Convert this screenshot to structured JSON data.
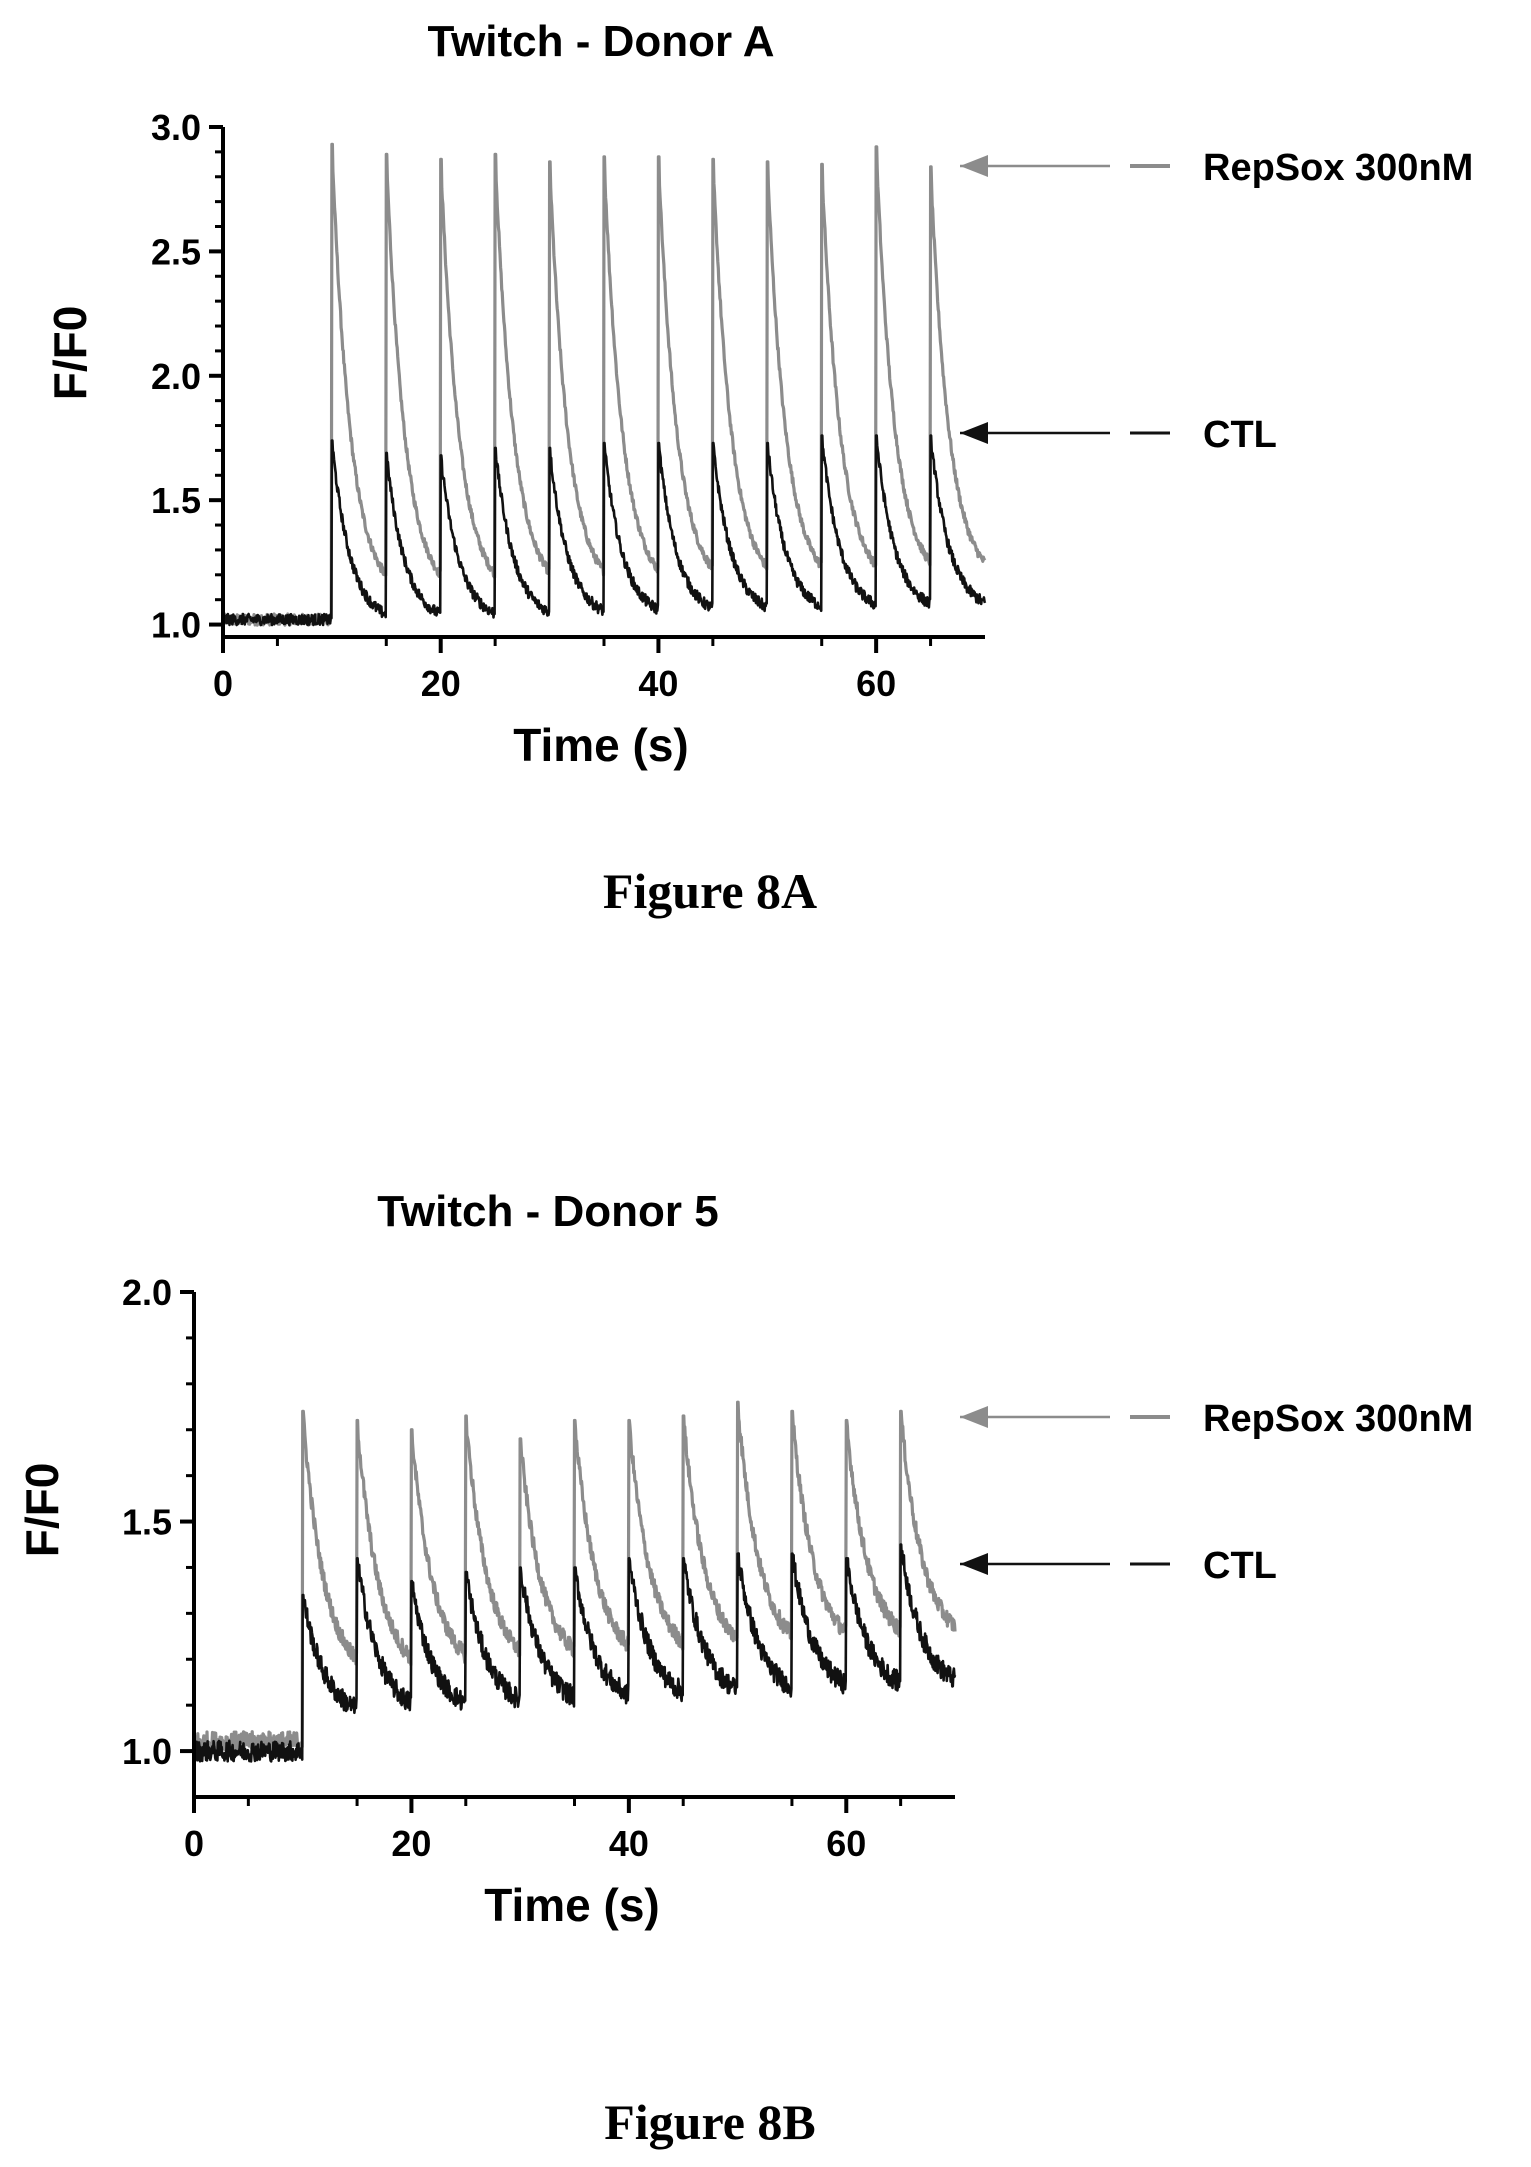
{
  "chart_data": [
    {
      "type": "line",
      "title": "Twitch - Donor A",
      "xlabel": "Time (s)",
      "ylabel": "F/F0",
      "xlim": [
        0,
        70
      ],
      "ylim": [
        0.95,
        3.0
      ],
      "x_ticks": [
        "0",
        "20",
        "40",
        "60"
      ],
      "y_ticks": [
        "1.0",
        "1.5",
        "2.0",
        "2.5",
        "3.0"
      ],
      "grid": false,
      "legend_placement": "right",
      "stim_start": 10,
      "stim_period": 5,
      "decay_tau": 1.7,
      "caption": "Figure 8A",
      "series": [
        {
          "name": "RepSox 300nM",
          "color": "#8c8c8c",
          "baseline": 1.02,
          "plateau_start": 1.15,
          "plateau_end": 1.21,
          "peaks": [
            {
              "x": 10,
              "y": 2.93
            },
            {
              "x": 15,
              "y": 2.89
            },
            {
              "x": 20,
              "y": 2.87
            },
            {
              "x": 25,
              "y": 2.89
            },
            {
              "x": 30,
              "y": 2.86
            },
            {
              "x": 35,
              "y": 2.88
            },
            {
              "x": 40,
              "y": 2.88
            },
            {
              "x": 45,
              "y": 2.87
            },
            {
              "x": 50,
              "y": 2.86
            },
            {
              "x": 55,
              "y": 2.85
            },
            {
              "x": 60,
              "y": 2.92
            },
            {
              "x": 65,
              "y": 2.84
            }
          ]
        },
        {
          "name": "CTL",
          "color": "#111111",
          "baseline": 1.02,
          "plateau_start": 1.05,
          "plateau_end": 1.1,
          "peaks": [
            {
              "x": 10,
              "y": 1.74
            },
            {
              "x": 15,
              "y": 1.69
            },
            {
              "x": 20,
              "y": 1.68
            },
            {
              "x": 25,
              "y": 1.71
            },
            {
              "x": 30,
              "y": 1.71
            },
            {
              "x": 35,
              "y": 1.73
            },
            {
              "x": 40,
              "y": 1.73
            },
            {
              "x": 45,
              "y": 1.73
            },
            {
              "x": 50,
              "y": 1.73
            },
            {
              "x": 55,
              "y": 1.76
            },
            {
              "x": 60,
              "y": 1.76
            },
            {
              "x": 65,
              "y": 1.76
            }
          ]
        }
      ]
    },
    {
      "type": "line",
      "title": "Twitch - Donor 5",
      "xlabel": "Time (s)",
      "ylabel": "F/F0",
      "xlim": [
        0,
        70
      ],
      "ylim": [
        0.9,
        2.0
      ],
      "x_ticks": [
        "0",
        "20",
        "40",
        "60"
      ],
      "y_ticks": [
        "1.0",
        "1.5",
        "2.0"
      ],
      "grid": false,
      "legend_placement": "right",
      "stim_start": 10,
      "stim_period": 5,
      "decay_tau": 2.0,
      "caption": "Figure 8B",
      "series": [
        {
          "name": "RepSox 300nM",
          "color": "#8c8c8c",
          "baseline": 1.02,
          "plateau_start": 1.2,
          "plateau_end": 1.28,
          "peaks": [
            {
              "x": 10,
              "y": 1.74
            },
            {
              "x": 15,
              "y": 1.72
            },
            {
              "x": 20,
              "y": 1.7
            },
            {
              "x": 25,
              "y": 1.73
            },
            {
              "x": 30,
              "y": 1.68
            },
            {
              "x": 35,
              "y": 1.72
            },
            {
              "x": 40,
              "y": 1.72
            },
            {
              "x": 45,
              "y": 1.73
            },
            {
              "x": 50,
              "y": 1.76
            },
            {
              "x": 55,
              "y": 1.74
            },
            {
              "x": 60,
              "y": 1.72
            },
            {
              "x": 65,
              "y": 1.74
            }
          ]
        },
        {
          "name": "CTL",
          "color": "#111111",
          "baseline": 1.0,
          "plateau_start": 1.12,
          "plateau_end": 1.18,
          "peaks": [
            {
              "x": 10,
              "y": 1.34
            },
            {
              "x": 15,
              "y": 1.42
            },
            {
              "x": 20,
              "y": 1.37
            },
            {
              "x": 25,
              "y": 1.39
            },
            {
              "x": 30,
              "y": 1.4
            },
            {
              "x": 35,
              "y": 1.4
            },
            {
              "x": 40,
              "y": 1.42
            },
            {
              "x": 45,
              "y": 1.42
            },
            {
              "x": 50,
              "y": 1.43
            },
            {
              "x": 55,
              "y": 1.43
            },
            {
              "x": 60,
              "y": 1.42
            },
            {
              "x": 65,
              "y": 1.45
            }
          ]
        }
      ]
    }
  ]
}
